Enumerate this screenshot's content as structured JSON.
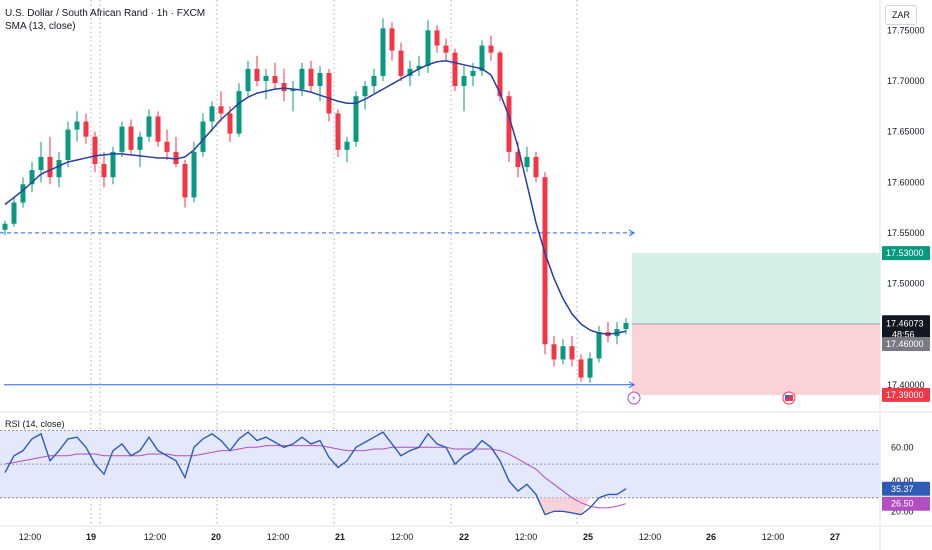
{
  "header": {
    "symbol_line": "U.S. Dollar / South African Rand · 1h · FXCM",
    "indicator_line": "SMA (13, close)",
    "currency": "ZAR"
  },
  "colors": {
    "up": "#089981",
    "down": "#f23645",
    "sma": "#2a3e9e",
    "rsi": "#2f5bb7",
    "rsi_ma": "#b14ec2",
    "grid": "#5b74c9",
    "tp_zone": "#d3efe6",
    "sl_zone": "#fbd3d6",
    "rsi_band": "#e3e8fb"
  },
  "chart_data": [
    {
      "type": "candlestick",
      "title": "U.S. Dollar / South African Rand · 1h · FXCM",
      "x_tick_labels": [
        "12:00",
        "19",
        "12:00",
        "20",
        "12:00",
        "21",
        "12:00",
        "22",
        "12:00",
        "25",
        "12:00",
        "26",
        "12:00",
        "27"
      ],
      "y_tick_labels": [
        "17.75000",
        "17.70000",
        "17.65000",
        "17.60000",
        "17.55000",
        "17.50000",
        "17.40000"
      ],
      "ylim": [
        17.38,
        17.78
      ],
      "grid": true,
      "candles": [
        [
          17.553,
          17.562,
          17.548,
          17.559
        ],
        [
          17.559,
          17.585,
          17.556,
          17.58
        ],
        [
          17.58,
          17.605,
          17.575,
          17.598
        ],
        [
          17.598,
          17.62,
          17.59,
          17.612
        ],
        [
          17.612,
          17.64,
          17.6,
          17.625
        ],
        [
          17.625,
          17.645,
          17.598,
          17.605
        ],
        [
          17.605,
          17.63,
          17.595,
          17.622
        ],
        [
          17.622,
          17.66,
          17.615,
          17.652
        ],
        [
          17.652,
          17.67,
          17.64,
          17.66
        ],
        [
          17.66,
          17.668,
          17.638,
          17.645
        ],
        [
          17.645,
          17.65,
          17.61,
          17.618
        ],
        [
          17.618,
          17.63,
          17.595,
          17.605
        ],
        [
          17.605,
          17.635,
          17.598,
          17.63
        ],
        [
          17.63,
          17.66,
          17.625,
          17.655
        ],
        [
          17.655,
          17.662,
          17.628,
          17.632
        ],
        [
          17.632,
          17.65,
          17.615,
          17.645
        ],
        [
          17.645,
          17.672,
          17.64,
          17.665
        ],
        [
          17.665,
          17.67,
          17.635,
          17.64
        ],
        [
          17.64,
          17.652,
          17.622,
          17.63
        ],
        [
          17.63,
          17.645,
          17.615,
          17.618
        ],
        [
          17.618,
          17.622,
          17.575,
          17.585
        ],
        [
          17.585,
          17.64,
          17.58,
          17.63
        ],
        [
          17.63,
          17.668,
          17.625,
          17.66
        ],
        [
          17.66,
          17.68,
          17.65,
          17.675
        ],
        [
          17.675,
          17.69,
          17.66,
          17.668
        ],
        [
          17.668,
          17.675,
          17.64,
          17.648
        ],
        [
          17.648,
          17.698,
          17.645,
          17.69
        ],
        [
          17.69,
          17.72,
          17.685,
          17.712
        ],
        [
          17.712,
          17.725,
          17.695,
          17.7
        ],
        [
          17.7,
          17.712,
          17.682,
          17.705
        ],
        [
          17.705,
          17.718,
          17.692,
          17.698
        ],
        [
          17.698,
          17.712,
          17.68,
          17.69
        ],
        [
          17.69,
          17.7,
          17.67,
          17.692
        ],
        [
          17.692,
          17.718,
          17.685,
          17.712
        ],
        [
          17.712,
          17.72,
          17.69,
          17.695
        ],
        [
          17.695,
          17.715,
          17.68,
          17.708
        ],
        [
          17.708,
          17.712,
          17.66,
          17.668
        ],
        [
          17.668,
          17.672,
          17.625,
          17.632
        ],
        [
          17.632,
          17.645,
          17.62,
          17.64
        ],
        [
          17.64,
          17.69,
          17.635,
          17.685
        ],
        [
          17.685,
          17.7,
          17.672,
          17.695
        ],
        [
          17.695,
          17.712,
          17.688,
          17.705
        ],
        [
          17.705,
          17.762,
          17.7,
          17.752
        ],
        [
          17.752,
          17.758,
          17.72,
          17.73
        ],
        [
          17.73,
          17.738,
          17.7,
          17.705
        ],
        [
          17.705,
          17.72,
          17.695,
          17.712
        ],
        [
          17.712,
          17.725,
          17.705,
          17.715
        ],
        [
          17.715,
          17.76,
          17.708,
          17.75
        ],
        [
          17.75,
          17.755,
          17.728,
          17.735
        ],
        [
          17.735,
          17.742,
          17.72,
          17.728
        ],
        [
          17.728,
          17.732,
          17.69,
          17.695
        ],
        [
          17.695,
          17.715,
          17.67,
          17.705
        ],
        [
          17.705,
          17.718,
          17.695,
          17.71
        ],
        [
          17.71,
          17.74,
          17.705,
          17.735
        ],
        [
          17.735,
          17.745,
          17.72,
          17.728
        ],
        [
          17.728,
          17.73,
          17.68,
          17.685
        ],
        [
          17.685,
          17.69,
          17.62,
          17.63
        ],
        [
          17.63,
          17.64,
          17.605,
          17.615
        ],
        [
          17.615,
          17.635,
          17.61,
          17.625
        ],
        [
          17.625,
          17.63,
          17.6,
          17.605
        ],
        [
          17.605,
          17.61,
          17.43,
          17.44
        ],
        [
          17.44,
          17.448,
          17.418,
          17.425
        ],
        [
          17.425,
          17.445,
          17.42,
          17.438
        ],
        [
          17.438,
          17.448,
          17.418,
          17.425
        ],
        [
          17.425,
          17.43,
          17.403,
          17.407
        ],
        [
          17.407,
          17.432,
          17.402,
          17.426
        ],
        [
          17.426,
          17.458,
          17.422,
          17.452
        ],
        [
          17.452,
          17.462,
          17.442,
          17.448
        ],
        [
          17.448,
          17.462,
          17.44,
          17.455
        ],
        [
          17.455,
          17.466,
          17.45,
          17.461
        ]
      ],
      "sma_13": [
        17.578,
        17.585,
        17.592,
        17.6,
        17.608,
        17.612,
        17.616,
        17.62,
        17.622,
        17.624,
        17.626,
        17.627,
        17.628,
        17.628,
        17.627,
        17.626,
        17.625,
        17.624,
        17.624,
        17.623,
        17.625,
        17.632,
        17.642,
        17.652,
        17.662,
        17.67,
        17.678,
        17.684,
        17.688,
        17.69,
        17.692,
        17.693,
        17.692,
        17.691,
        17.689,
        17.686,
        17.683,
        17.68,
        17.678,
        17.678,
        17.682,
        17.687,
        17.692,
        17.697,
        17.702,
        17.707,
        17.712,
        17.716,
        17.719,
        17.72,
        17.718,
        17.716,
        17.714,
        17.712,
        17.706,
        17.688,
        17.665,
        17.635,
        17.598,
        17.56,
        17.53,
        17.505,
        17.485,
        17.47,
        17.46,
        17.454,
        17.451,
        17.45,
        17.451,
        17.453
      ],
      "last_price": "17.46073",
      "countdown": "48:56",
      "levels": {
        "take_profit": {
          "value": 17.53,
          "label": "17.53000"
        },
        "entry": {
          "value": 17.46,
          "label": "17.46000"
        },
        "stop_loss": {
          "value": 17.39,
          "label": "17.39000"
        },
        "dashed_level": 17.55,
        "support_level": 17.4
      }
    },
    {
      "type": "line",
      "title": "RSI (14, close)",
      "y_tick_labels": [
        "60.00",
        "40.00",
        "20.00"
      ],
      "ylim": [
        18,
        78
      ],
      "bands": [
        70,
        50,
        30
      ],
      "rsi": [
        45,
        55,
        58,
        65,
        68,
        52,
        58,
        65,
        66,
        60,
        50,
        44,
        58,
        62,
        55,
        58,
        66,
        58,
        55,
        52,
        42,
        60,
        65,
        68,
        64,
        58,
        65,
        69,
        64,
        66,
        63,
        60,
        62,
        66,
        62,
        64,
        54,
        48,
        52,
        60,
        63,
        66,
        69,
        62,
        55,
        58,
        60,
        68,
        62,
        60,
        50,
        55,
        58,
        64,
        60,
        52,
        40,
        34,
        38,
        32,
        20,
        22,
        22,
        21,
        20,
        24,
        30,
        32,
        32,
        35.37
      ],
      "rsi_ma": [
        50,
        51,
        52,
        53,
        54,
        55,
        55,
        55,
        56,
        56,
        56,
        55,
        55,
        55,
        55,
        55,
        56,
        56,
        56,
        55,
        55,
        55,
        56,
        57,
        58,
        58,
        59,
        60,
        60,
        61,
        61,
        61,
        61,
        61,
        61,
        61,
        60,
        59,
        58,
        58,
        58,
        59,
        59,
        60,
        60,
        60,
        60,
        60,
        60,
        60,
        59,
        59,
        59,
        59,
        59,
        58,
        56,
        53,
        50,
        47,
        42,
        38,
        34,
        30,
        27,
        25,
        24,
        24,
        25,
        26.5
      ],
      "last_rsi": "35.37",
      "last_rsi_ma": "26.50"
    }
  ]
}
